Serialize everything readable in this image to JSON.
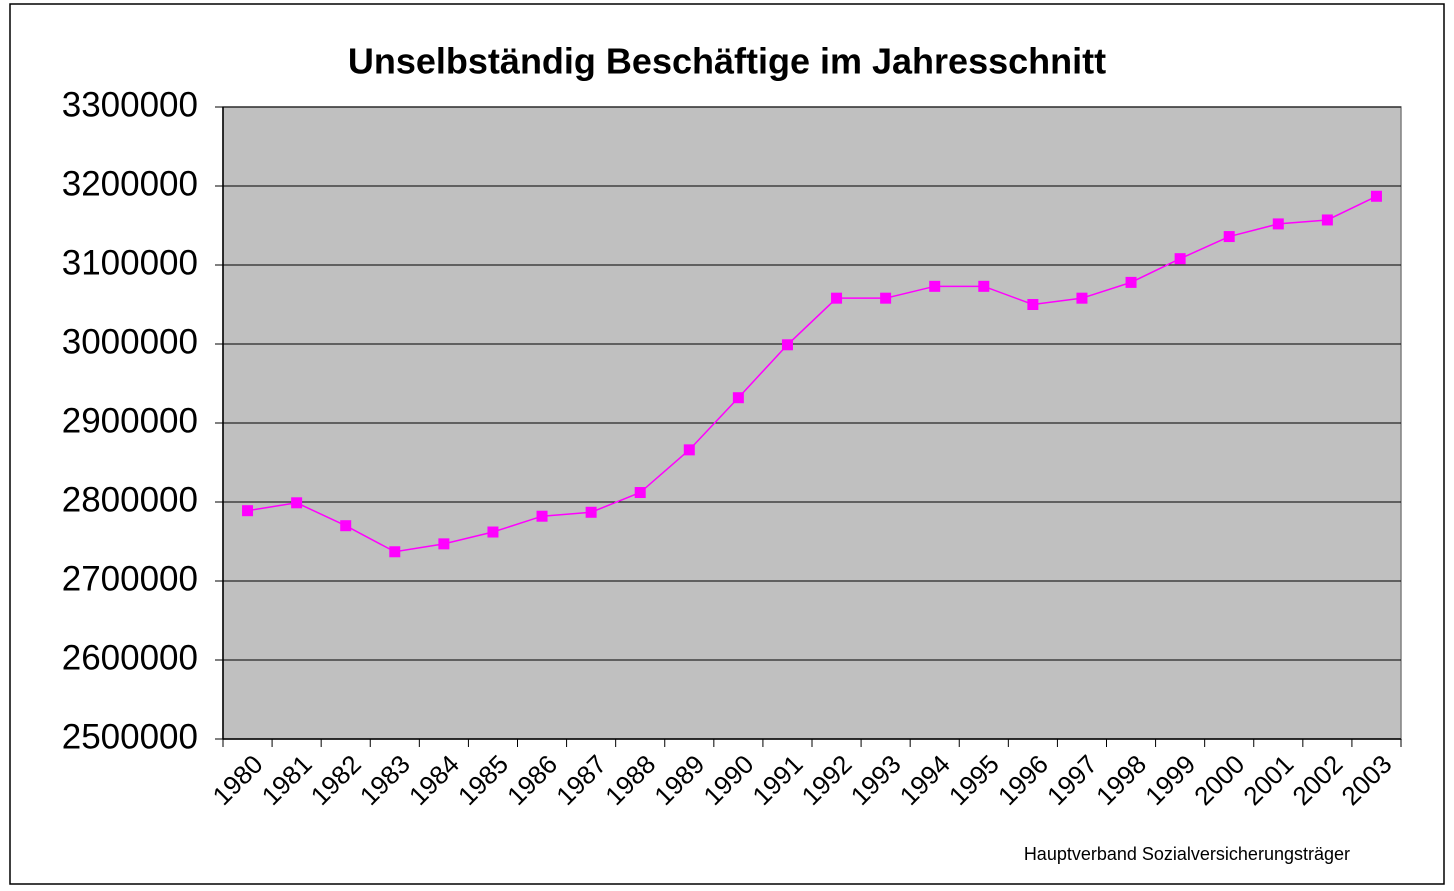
{
  "chart_data": {
    "type": "line",
    "title": "Unselbständig Beschäftige im Jahresschnitt",
    "source": "Hauptverband Sozialversicherungsträger",
    "categories": [
      "1980",
      "1981",
      "1982",
      "1983",
      "1984",
      "1985",
      "1986",
      "1987",
      "1988",
      "1989",
      "1990",
      "1991",
      "1992",
      "1993",
      "1994",
      "1995",
      "1996",
      "1997",
      "1998",
      "1999",
      "2000",
      "2001",
      "2002",
      "2003"
    ],
    "series": [
      {
        "color": "#ff00ff",
        "values": [
          2789000,
          2799000,
          2770000,
          2737000,
          2747000,
          2762000,
          2782000,
          2787000,
          2812000,
          2866000,
          2932000,
          2999000,
          3058000,
          3058000,
          3073000,
          3073000,
          3050000,
          3058000,
          3078000,
          3108000,
          3136000,
          3152000,
          3157000,
          3187000
        ]
      }
    ],
    "ylim": [
      2500000,
      3300000
    ],
    "yticks": [
      2500000,
      2600000,
      2700000,
      2800000,
      2900000,
      3000000,
      3100000,
      3200000,
      3300000
    ],
    "grid": true,
    "plot_background": "#c0c0c0"
  }
}
